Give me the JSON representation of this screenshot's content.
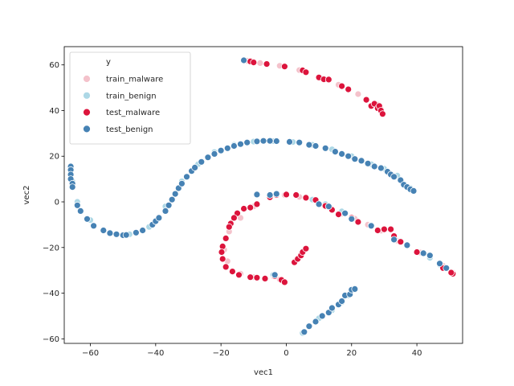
{
  "chart_data": {
    "type": "scatter",
    "title": "",
    "xlabel": "vec1",
    "ylabel": "vec2",
    "xlim": [
      -68,
      54
    ],
    "ylim": [
      -62,
      68
    ],
    "xticks": [
      -60,
      -40,
      -20,
      0,
      20,
      40
    ],
    "yticks": [
      -60,
      -40,
      -20,
      0,
      20,
      40,
      60
    ],
    "grid": false,
    "legend": {
      "title": "y",
      "placement": "top-left",
      "entries": [
        "train_malware",
        "train_benign",
        "test_malware",
        "test_benign"
      ]
    },
    "colors": {
      "train_malware": "#f4c2cb",
      "train_benign": "#add8e6",
      "test_malware": "#dc143c",
      "test_benign": "#4682b4"
    },
    "series": [
      {
        "name": "train_malware",
        "points": [
          [
            -12,
            61.8
          ],
          [
            -8,
            60.8
          ],
          [
            -2,
            59.6
          ],
          [
            4,
            57.7
          ],
          [
            10,
            54.6
          ],
          [
            16,
            51.3
          ],
          [
            22,
            47.2
          ],
          [
            28,
            42.6
          ],
          [
            29,
            40.6
          ],
          [
            -0.5,
            3
          ],
          [
            4,
            2.2
          ],
          [
            8,
            1.2
          ],
          [
            13,
            -2.4
          ],
          [
            17,
            -5.2
          ],
          [
            21,
            -7.4
          ],
          [
            25,
            -10
          ],
          [
            29,
            -12.6
          ],
          [
            34,
            -17
          ],
          [
            41,
            -22.2
          ],
          [
            48,
            -28
          ],
          [
            51,
            -31
          ],
          [
            6,
            -20.5
          ],
          [
            4.5,
            -23
          ],
          [
            3,
            -25.5
          ],
          [
            -10,
            -33
          ],
          [
            -14,
            -31.5
          ],
          [
            -18,
            -26
          ],
          [
            -19,
            -21
          ],
          [
            -17.5,
            -13
          ],
          [
            -14,
            -7
          ],
          [
            -10,
            -2
          ],
          [
            -5,
            2
          ],
          [
            -2,
            -34
          ],
          [
            -4,
            -32.5
          ]
        ]
      },
      {
        "name": "train_benign",
        "points": [
          [
            -66,
            15
          ],
          [
            -65.5,
            9
          ],
          [
            -64,
            0
          ],
          [
            -60,
            -8
          ],
          [
            -54,
            -13.5
          ],
          [
            -48,
            -14.2
          ],
          [
            -42,
            -11
          ],
          [
            -37,
            -2
          ],
          [
            -32,
            9
          ],
          [
            -27,
            16.5
          ],
          [
            -22,
            21.8
          ],
          [
            -16,
            25
          ],
          [
            -10,
            26.4
          ],
          [
            -4,
            26.6
          ],
          [
            2,
            26.2
          ],
          [
            8,
            25
          ],
          [
            14,
            23
          ],
          [
            20,
            20
          ],
          [
            26,
            16.5
          ],
          [
            30,
            14.5
          ],
          [
            34,
            11.5
          ],
          [
            38,
            6
          ],
          [
            39,
            5
          ],
          [
            5,
            -57.5
          ],
          [
            7,
            -54.5
          ],
          [
            10,
            -51
          ],
          [
            14,
            -47.5
          ],
          [
            17,
            -44
          ],
          [
            19,
            -41
          ],
          [
            21,
            -38.5
          ],
          [
            8,
            1
          ],
          [
            12,
            -1
          ],
          [
            17,
            -4.2
          ],
          [
            26,
            -10.2
          ],
          [
            35,
            -17.2
          ],
          [
            44,
            -24.5
          ],
          [
            47,
            -27.5
          ],
          [
            -4,
            -32
          ]
        ]
      },
      {
        "name": "test_malware",
        "points": [
          [
            -11,
            61.5
          ],
          [
            -10,
            61.1
          ],
          [
            -6,
            60.4
          ],
          [
            -0.5,
            59.3
          ],
          [
            5,
            57.6
          ],
          [
            6,
            56.8
          ],
          [
            10,
            54.5
          ],
          [
            11.5,
            53.7
          ],
          [
            13,
            53.6
          ],
          [
            17,
            50.7
          ],
          [
            19,
            49.3
          ],
          [
            24.5,
            44.7
          ],
          [
            26,
            42
          ],
          [
            27,
            43
          ],
          [
            28,
            41
          ],
          [
            28.5,
            42
          ],
          [
            29,
            40
          ],
          [
            29.5,
            38.5
          ],
          [
            -15,
            -5
          ],
          [
            -16,
            -7
          ],
          [
            -17,
            -9.5
          ],
          [
            -17.5,
            -11
          ],
          [
            -18.5,
            -16
          ],
          [
            -19.5,
            -19.5
          ],
          [
            -19.8,
            -22
          ],
          [
            -19.5,
            -25
          ],
          [
            -18.5,
            -28.5
          ],
          [
            -16.5,
            -30.5
          ],
          [
            -14.5,
            -32
          ],
          [
            -11,
            -33
          ],
          [
            -9,
            -33.2
          ],
          [
            -6.5,
            -33.6
          ],
          [
            -3.5,
            -32.5
          ],
          [
            -1.5,
            -34.2
          ],
          [
            -0.5,
            -35.2
          ],
          [
            -13,
            -3
          ],
          [
            -11,
            -2.5
          ],
          [
            -9,
            -1
          ],
          [
            -5,
            2
          ],
          [
            -3,
            3
          ],
          [
            0,
            3.2
          ],
          [
            3,
            3
          ],
          [
            6,
            1.8
          ],
          [
            9,
            0.8
          ],
          [
            12,
            -1.8
          ],
          [
            14,
            -3.5
          ],
          [
            16,
            -5.5
          ],
          [
            20,
            -7
          ],
          [
            22,
            -8.8
          ],
          [
            28,
            -12.5
          ],
          [
            30,
            -12
          ],
          [
            32,
            -12
          ],
          [
            33,
            -15
          ],
          [
            35,
            -17.5
          ],
          [
            40,
            -22
          ],
          [
            48,
            -29
          ],
          [
            51,
            -31.5
          ],
          [
            50.5,
            -31
          ],
          [
            2.5,
            -26.5
          ],
          [
            3.5,
            -25
          ],
          [
            4.5,
            -23.5
          ],
          [
            5,
            -22
          ],
          [
            6,
            -20.5
          ]
        ]
      },
      {
        "name": "test_benign",
        "points": [
          [
            -66,
            15.5
          ],
          [
            -66,
            14
          ],
          [
            -66,
            12
          ],
          [
            -66,
            10
          ],
          [
            -65.5,
            8
          ],
          [
            -65.5,
            6.5
          ],
          [
            -64,
            -1.5
          ],
          [
            -63,
            -4
          ],
          [
            -61,
            -7.5
          ],
          [
            -59,
            -10.5
          ],
          [
            -56,
            -12.5
          ],
          [
            -54,
            -13.7
          ],
          [
            -52,
            -14.2
          ],
          [
            -50,
            -14.6
          ],
          [
            -49,
            -14.5
          ],
          [
            -46,
            -13.5
          ],
          [
            -44,
            -12.5
          ],
          [
            -41,
            -10
          ],
          [
            -40,
            -8.5
          ],
          [
            -39,
            -7
          ],
          [
            -37,
            -4
          ],
          [
            -36,
            -1.5
          ],
          [
            -35,
            1
          ],
          [
            -34,
            3.5
          ],
          [
            -33,
            6
          ],
          [
            -32,
            8
          ],
          [
            -30.5,
            11
          ],
          [
            -29,
            13.5
          ],
          [
            -28,
            15
          ],
          [
            -26,
            17.5
          ],
          [
            -24,
            19.5
          ],
          [
            -22,
            21
          ],
          [
            -20,
            22.5
          ],
          [
            -18,
            23.5
          ],
          [
            -16,
            24.5
          ],
          [
            -14,
            25.3
          ],
          [
            -12,
            26
          ],
          [
            -9,
            26.5
          ],
          [
            -7,
            26.7
          ],
          [
            -5,
            26.7
          ],
          [
            -3,
            26.6
          ],
          [
            1,
            26.3
          ],
          [
            4,
            26
          ],
          [
            7,
            25
          ],
          [
            9,
            24.5
          ],
          [
            12,
            23.5
          ],
          [
            15,
            22
          ],
          [
            17,
            21
          ],
          [
            19,
            20
          ],
          [
            21,
            18.8
          ],
          [
            23,
            18
          ],
          [
            25,
            16.8
          ],
          [
            27,
            15.5
          ],
          [
            29,
            14.8
          ],
          [
            31,
            13.2
          ],
          [
            32,
            12
          ],
          [
            33,
            11
          ],
          [
            35,
            9.5
          ],
          [
            36,
            7.5
          ],
          [
            37,
            6.5
          ],
          [
            38,
            5.5
          ],
          [
            39,
            4.8
          ],
          [
            -13,
            62
          ],
          [
            -9,
            3.2
          ],
          [
            -5,
            3
          ],
          [
            -3,
            3.5
          ],
          [
            -3.5,
            -32
          ],
          [
            10,
            -1
          ],
          [
            13,
            -2
          ],
          [
            18,
            -5
          ],
          [
            20,
            -7.5
          ],
          [
            26,
            -10.5
          ],
          [
            33,
            -16.5
          ],
          [
            37,
            -19
          ],
          [
            42,
            -22.5
          ],
          [
            44,
            -23.5
          ],
          [
            47,
            -27
          ],
          [
            49,
            -29
          ],
          [
            5.5,
            -57
          ],
          [
            7,
            -54.5
          ],
          [
            9,
            -52.5
          ],
          [
            11,
            -50
          ],
          [
            13,
            -48.5
          ],
          [
            14,
            -46.5
          ],
          [
            16,
            -45
          ],
          [
            17,
            -43.5
          ],
          [
            18,
            -41
          ],
          [
            19.5,
            -40.5
          ],
          [
            20,
            -38.5
          ],
          [
            21,
            -38.2
          ]
        ]
      }
    ]
  }
}
